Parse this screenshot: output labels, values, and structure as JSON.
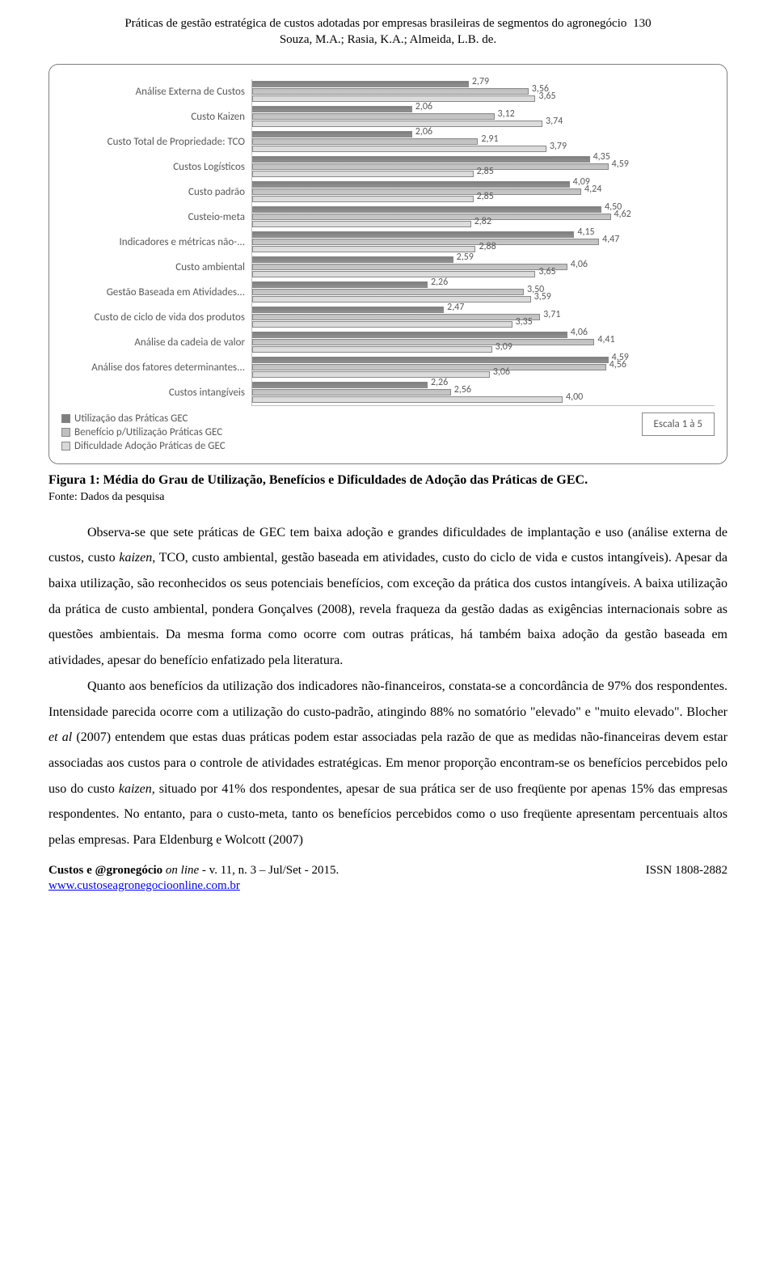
{
  "header": {
    "title_line1": "Práticas de gestão estratégica de custos adotadas por empresas brasileiras de segmentos do agronegócio",
    "page_number": "130",
    "authors": "Souza, M.A.; Rasia, K.A.; Almeida, L.B. de."
  },
  "chart": {
    "type": "bar",
    "scale_max": 5,
    "colors": {
      "utilizacao": "#7f7f7f",
      "beneficio": "#bfbfbf",
      "dificuldade": "#d9d9d9",
      "text": "#595959",
      "axis": "#bfbfbf",
      "border": "#888888"
    },
    "categories": [
      {
        "label": "Análise Externa de Custos",
        "utilizacao": 2.79,
        "beneficio": 3.56,
        "dificuldade": 3.65
      },
      {
        "label": "Custo Kaizen",
        "utilizacao": 2.06,
        "beneficio": 3.12,
        "dificuldade": 3.74
      },
      {
        "label": "Custo Total de Propriedade: TCO",
        "utilizacao": 2.06,
        "beneficio": 2.91,
        "dificuldade": 3.79
      },
      {
        "label": "Custos Logísticos",
        "utilizacao": 4.35,
        "beneficio": 4.59,
        "dificuldade": 2.85
      },
      {
        "label": "Custo padrão",
        "utilizacao": 4.09,
        "beneficio": 4.24,
        "dificuldade": 2.85
      },
      {
        "label": "Custeio-meta",
        "utilizacao": 4.5,
        "beneficio": 4.62,
        "dificuldade": 2.82
      },
      {
        "label": "Indicadores e métricas não-...",
        "utilizacao": 4.15,
        "beneficio": 4.47,
        "dificuldade": 2.88
      },
      {
        "label": "Custo ambiental",
        "utilizacao": 2.59,
        "beneficio": 4.06,
        "dificuldade": 3.65
      },
      {
        "label": "Gestão Baseada em Atividades...",
        "utilizacao": 2.26,
        "beneficio": 3.5,
        "dificuldade": 3.59
      },
      {
        "label": "Custo de ciclo de vida dos produtos",
        "utilizacao": 2.47,
        "beneficio": 3.71,
        "dificuldade": 3.35
      },
      {
        "label": "Análise da cadeia de valor",
        "utilizacao": 4.06,
        "beneficio": 4.41,
        "dificuldade": 3.09
      },
      {
        "label": "Análise dos fatores determinantes...",
        "utilizacao": 4.59,
        "beneficio": 4.56,
        "dificuldade": 3.06
      },
      {
        "label": "Custos intangíveis",
        "utilizacao": 2.26,
        "beneficio": 2.56,
        "dificuldade": 4.0
      }
    ],
    "legend": {
      "utilizacao": "Utilização das Práticas GEC",
      "beneficio": "Benefício p/Utilização Práticas GEC",
      "dificuldade": "Dificuldade Adoção Práticas de GEC"
    },
    "escala_label": "Escala 1 à 5"
  },
  "figure": {
    "caption": "Figura 1: Média do Grau de Utilização, Benefícios e Dificuldades de Adoção das Práticas de GEC.",
    "source": "Fonte: Dados da pesquisa"
  },
  "body": {
    "p1": "Observa-se que sete práticas de GEC tem baixa adoção e grandes dificuldades de implantação e uso (análise externa de custos, custo kaizen, TCO, custo ambiental, gestão baseada em atividades, custo do ciclo de vida e custos intangíveis). Apesar da baixa utilização, são reconhecidos os seus potenciais benefícios, com exceção da prática dos custos intangíveis. A baixa utilização da prática de custo ambiental, pondera Gonçalves (2008), revela fraqueza da gestão dadas as exigências internacionais sobre as questões ambientais. Da mesma forma como ocorre com outras práticas, há também baixa adoção da gestão baseada em atividades, apesar do benefício enfatizado pela literatura.",
    "p2": "Quanto aos benefícios da utilização dos indicadores não-financeiros, constata-se a concordância de 97% dos respondentes. Intensidade parecida ocorre com a utilização do custo-padrão, atingindo 88% no somatório \"elevado\" e \"muito elevado\". Blocher et al (2007) entendem que estas duas práticas podem estar associadas pela razão de que as medidas não-financeiras devem estar associadas aos custos para o controle de atividades estratégicas. Em menor proporção encontram-se os benefícios percebidos pelo uso do custo kaizen, situado por 41% dos respondentes, apesar de sua prática ser de uso freqüente por apenas 15% das empresas respondentes. No entanto, para o custo-meta, tanto os benefícios percebidos como o uso freqüente apresentam percentuais altos pelas empresas. Para Eldenburg e Wolcott (2007)"
  },
  "footer": {
    "journal_prefix": "Custos e @gronegócio",
    "journal_mid": " on line",
    "journal_suffix": " - v. 11, n. 3 – Jul/Set - 2015.",
    "issn": "ISSN 1808-2882",
    "url": "www.custoseagronegocioonline.com.br"
  }
}
